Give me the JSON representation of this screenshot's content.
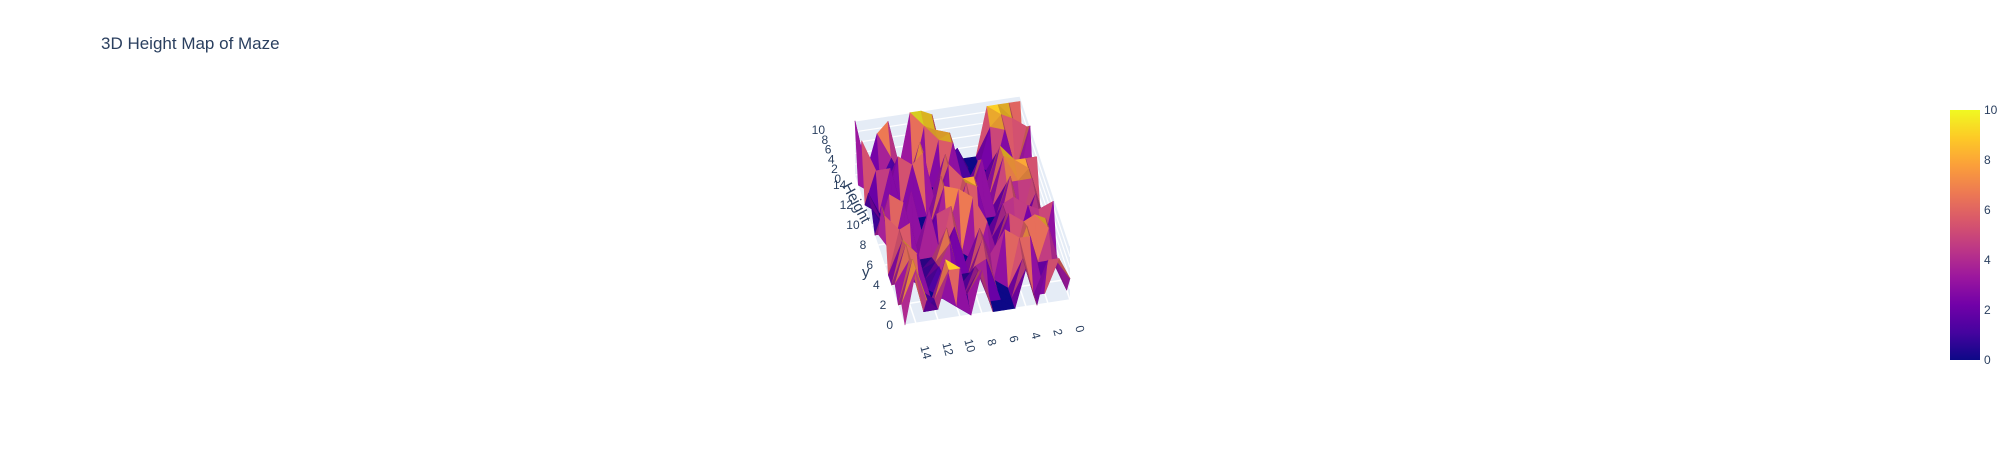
{
  "chart_data": {
    "type": "surface",
    "title": "3D Height Map of Maze",
    "axes": {
      "x": {
        "label": "",
        "ticks": [
          "0",
          "2",
          "4",
          "6",
          "8",
          "10",
          "12",
          "14"
        ]
      },
      "y": {
        "label": "y",
        "ticks": [
          "0",
          "2",
          "4",
          "6",
          "8",
          "10",
          "12",
          "14"
        ]
      },
      "z": {
        "label": "Height",
        "ticks": [
          "0",
          "2",
          "4",
          "6",
          "8",
          "10"
        ],
        "range": [
          0,
          10
        ]
      }
    },
    "colorscale": "plasma",
    "colorbar": {
      "range": [
        0,
        10
      ],
      "ticks": [
        "0",
        "2",
        "4",
        "6",
        "8",
        "10"
      ]
    },
    "z": [
      [
        4,
        8,
        8,
        0,
        7,
        0,
        0,
        0,
        8,
        0,
        9,
        9,
        2,
        4,
        10,
        0
      ],
      [
        0,
        6,
        0,
        0,
        7,
        0,
        0,
        0,
        6,
        2,
        0,
        9,
        2,
        0,
        10,
        2
      ],
      [
        0,
        4,
        0,
        9,
        9,
        0,
        0,
        6,
        5,
        0,
        0,
        0,
        0,
        2,
        8,
        0
      ],
      [
        0,
        8,
        2,
        9,
        4,
        9,
        0,
        8,
        2,
        0,
        8,
        4,
        0,
        7,
        9,
        2
      ],
      [
        0,
        8,
        9,
        8,
        0,
        0,
        3,
        8,
        0,
        0,
        9,
        3,
        0,
        0,
        8,
        0
      ],
      [
        9,
        0,
        0,
        0,
        8,
        0,
        7,
        0,
        0,
        7,
        0,
        2,
        0,
        9,
        8,
        0
      ],
      [
        0,
        6,
        7,
        0,
        6,
        0,
        0,
        10,
        0,
        9,
        0,
        9,
        0,
        0,
        0,
        9
      ],
      [
        0,
        7,
        0,
        7,
        6,
        0,
        0,
        7,
        10,
        2,
        6,
        0,
        0,
        9,
        0,
        9
      ],
      [
        0,
        8,
        0,
        9,
        0,
        0,
        8,
        9,
        0,
        9,
        0,
        0,
        9,
        0,
        9,
        2
      ],
      [
        0,
        8,
        6,
        6,
        0,
        0,
        8,
        8,
        0,
        9,
        0,
        0,
        0,
        0,
        0,
        0
      ],
      [
        8,
        8,
        8,
        9,
        0,
        9,
        0,
        0,
        9,
        0,
        0,
        0,
        0,
        0,
        0,
        3
      ],
      [
        0,
        6,
        0,
        9,
        0,
        7,
        0,
        0,
        9,
        0,
        10,
        8,
        0,
        8,
        0,
        4
      ],
      [
        10,
        0,
        0,
        6,
        0,
        0,
        0,
        9,
        0,
        0,
        10,
        2,
        8,
        0,
        6,
        0
      ],
      [
        8,
        0,
        8,
        0,
        0,
        0,
        0,
        9,
        8,
        0,
        0,
        0,
        0,
        0,
        0,
        10
      ],
      [
        0,
        8,
        9,
        7,
        0,
        0,
        4,
        0,
        8,
        9,
        0,
        0,
        4,
        0,
        0,
        0
      ],
      [
        9,
        9,
        9,
        9,
        0,
        0,
        0,
        0,
        9,
        10,
        10,
        0,
        9,
        7,
        0,
        10
      ]
    ]
  }
}
